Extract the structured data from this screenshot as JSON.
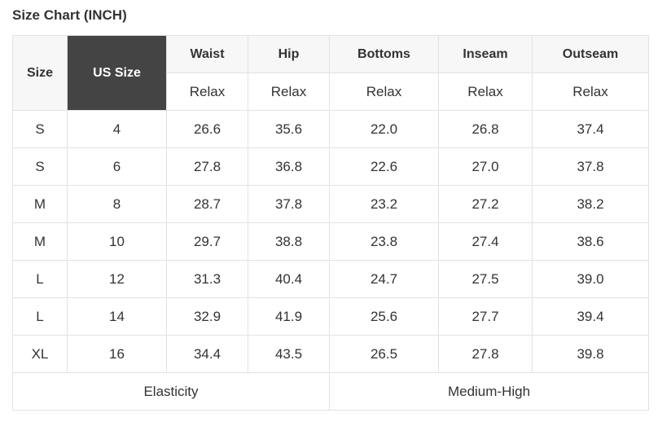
{
  "title": "Size Chart (INCH)",
  "colors": {
    "us_size_header_bg": "#444444",
    "header_bg": "#f7f7f7",
    "border": "#e2e2e2"
  },
  "headers": {
    "size": "Size",
    "us_size": "US Size",
    "columns": [
      "Waist",
      "Hip",
      "Bottoms",
      "Inseam",
      "Outseam"
    ]
  },
  "subheaders": [
    "Relax",
    "Relax",
    "Relax",
    "Relax",
    "Relax"
  ],
  "rows": [
    [
      "S",
      "4",
      "26.6",
      "35.6",
      "22.0",
      "26.8",
      "37.4"
    ],
    [
      "S",
      "6",
      "27.8",
      "36.8",
      "22.6",
      "27.0",
      "37.8"
    ],
    [
      "M",
      "8",
      "28.7",
      "37.8",
      "23.2",
      "27.2",
      "38.2"
    ],
    [
      "M",
      "10",
      "29.7",
      "38.8",
      "23.8",
      "27.4",
      "38.6"
    ],
    [
      "L",
      "12",
      "31.3",
      "40.4",
      "24.7",
      "27.5",
      "39.0"
    ],
    [
      "L",
      "14",
      "32.9",
      "41.9",
      "25.6",
      "27.7",
      "39.4"
    ],
    [
      "XL",
      "16",
      "34.4",
      "43.5",
      "26.5",
      "27.8",
      "39.8"
    ]
  ],
  "footer": {
    "label": "Elasticity",
    "value": "Medium-High"
  }
}
